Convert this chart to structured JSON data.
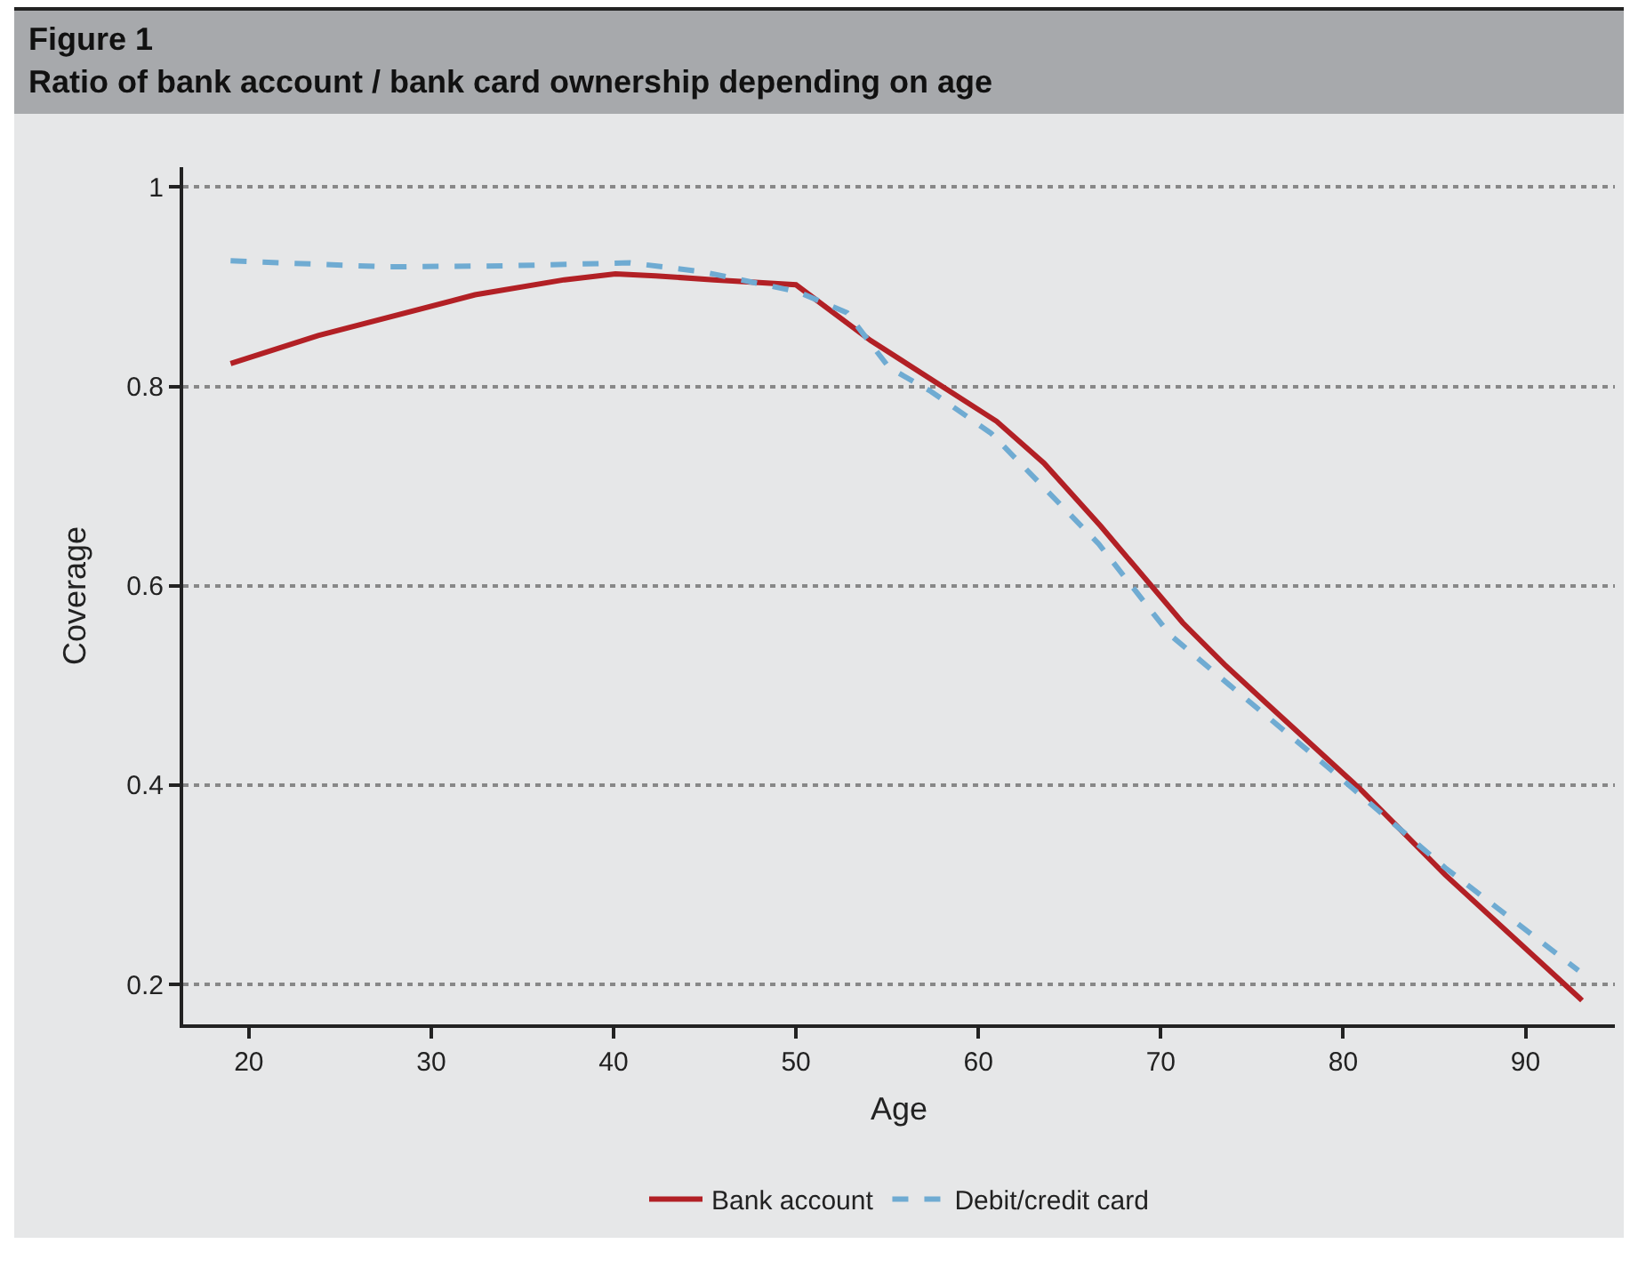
{
  "chart_data": {
    "type": "line",
    "title": "Figure 1",
    "subtitle": "Ratio of bank account / bank card ownership depending on age",
    "xlabel": "Age",
    "ylabel": "Coverage",
    "xlim": [
      16.4,
      94.9
    ],
    "xticks": [
      20,
      30,
      40,
      50,
      60,
      70,
      80,
      90
    ],
    "ylim": [
      0.16,
      1.02
    ],
    "yticks": [
      0.2,
      0.4,
      0.6,
      0.8,
      1
    ],
    "grid": "y",
    "legend": "bottom",
    "series": [
      {
        "name": "Bank account",
        "color": "#b22025",
        "line_style": "solid",
        "x": [
          19.0,
          23.8,
          32.4,
          37.3,
          40.1,
          42.3,
          45.5,
          50.0,
          54.1,
          61.0,
          63.6,
          66.7,
          71.2,
          73.5,
          75.8,
          81.0,
          85.6,
          93.1
        ],
        "values": [
          0.823,
          0.851,
          0.892,
          0.907,
          0.913,
          0.911,
          0.907,
          0.902,
          0.846,
          0.765,
          0.723,
          0.66,
          0.563,
          0.521,
          0.482,
          0.395,
          0.31,
          0.184
        ]
      },
      {
        "name": "Debit/credit card",
        "color": "#6fabd2",
        "line_style": "dashed",
        "x": [
          19.0,
          27.5,
          34.0,
          40.9,
          44.9,
          50.1,
          52.8,
          55.1,
          57.4,
          60.7,
          66.6,
          70.5,
          73.8,
          79.1,
          85.6,
          92.9
        ],
        "values": [
          0.926,
          0.92,
          0.921,
          0.924,
          0.915,
          0.895,
          0.874,
          0.819,
          0.795,
          0.753,
          0.642,
          0.551,
          0.5,
          0.419,
          0.317,
          0.214
        ]
      }
    ]
  }
}
